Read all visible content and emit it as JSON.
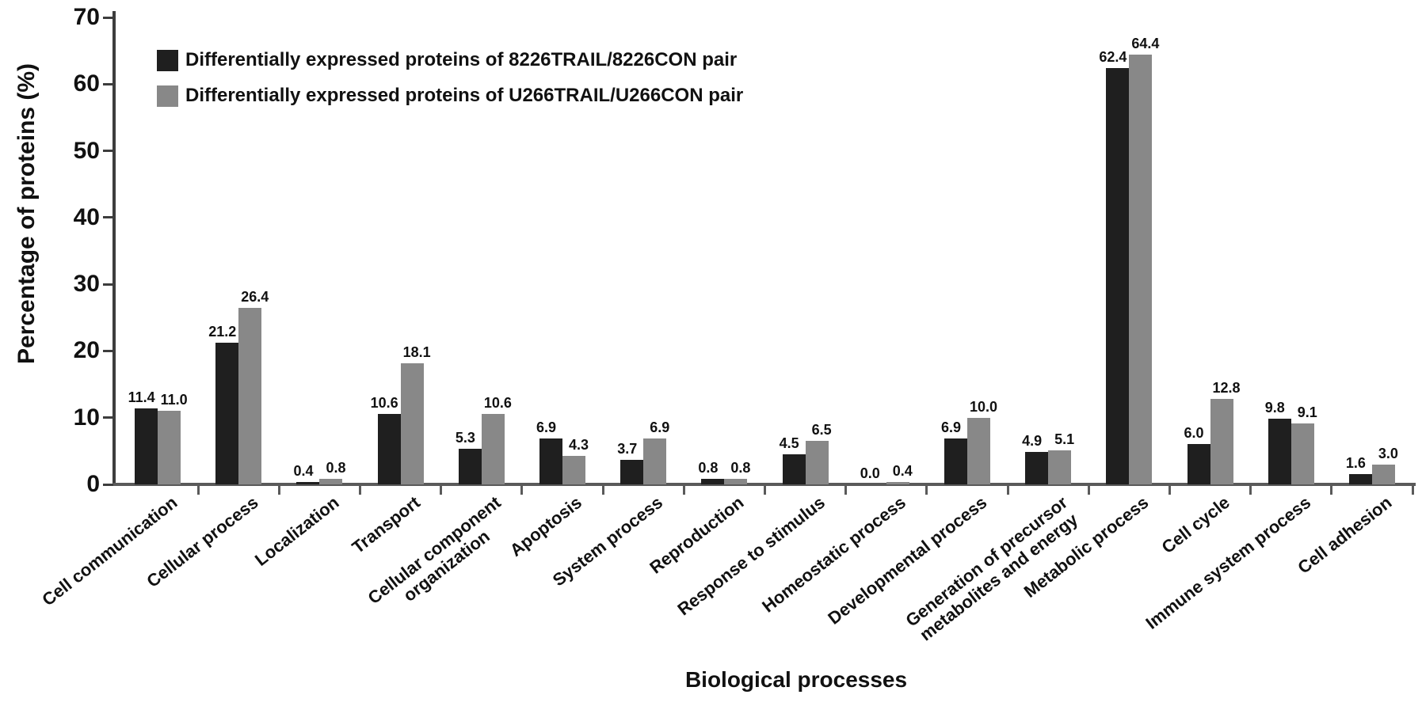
{
  "chart_data": {
    "type": "bar",
    "title": "",
    "xlabel": "Biological processes",
    "ylabel": "Percentage of proteins (%)",
    "ylim": [
      0,
      70
    ],
    "yticks": [
      0,
      10,
      20,
      30,
      40,
      50,
      60,
      70
    ],
    "grid": false,
    "legend_position": "top-left",
    "bar_value_labels": true,
    "categories": [
      "Cell communication",
      "Cellular process",
      "Localization",
      "Transport",
      "Cellular component\norganization",
      "Apoptosis",
      "System process",
      "Reproduction",
      "Response to stimulus",
      "Homeostatic process",
      "Developmental process",
      "Generation of precursor\nmetabolites and energy",
      "Metabolic process",
      "Cell cycle",
      "Immune system process",
      "Cell adhesion"
    ],
    "series": [
      {
        "name": "Differentially expressed proteins of 8226TRAIL/8226CON pair",
        "color": "#1f1f1f",
        "values": [
          11.4,
          21.2,
          0.4,
          10.6,
          5.3,
          6.9,
          3.7,
          0.8,
          4.5,
          0.0,
          6.9,
          4.9,
          62.4,
          6.0,
          9.8,
          1.6
        ]
      },
      {
        "name": "Differentially expressed proteins of U266TRAIL/U266CON pair",
        "color": "#888888",
        "values": [
          11.0,
          26.4,
          0.8,
          18.1,
          10.6,
          4.3,
          6.9,
          0.8,
          6.5,
          0.4,
          10.0,
          5.1,
          64.4,
          12.8,
          9.1,
          3.0
        ]
      }
    ]
  }
}
